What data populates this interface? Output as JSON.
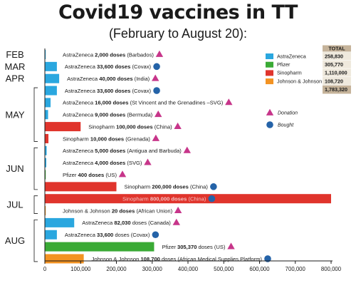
{
  "title": "Covid19 vaccines in TT",
  "subtitle": "(February to August 20):",
  "colors": {
    "AstraZeneca": "#2aa7df",
    "Pfizer": "#3aaa35",
    "Sinopharm": "#e0342c",
    "Johnson & Johnson": "#f39322",
    "donation": "#c7358a",
    "bought": "#2563a8"
  },
  "chart_data": {
    "type": "bar",
    "orientation": "horizontal",
    "title": "Covid19 vaccines in TT",
    "subtitle": "(February to August 20):",
    "xlim": [
      0,
      800000
    ],
    "xticks": [
      0,
      100000,
      200000,
      300000,
      400000,
      500000,
      600000,
      700000,
      800000
    ],
    "xtick_labels": [
      "0",
      "100,000",
      "200,000",
      "300,000",
      "400,000",
      "500,000",
      "600,000",
      "700,000",
      "800,000"
    ],
    "months": [
      {
        "label": "FEB",
        "rows": [
          0,
          0
        ]
      },
      {
        "label": "MAR",
        "rows": [
          1,
          1
        ]
      },
      {
        "label": "APR",
        "rows": [
          2,
          2
        ]
      },
      {
        "label": "MAY",
        "rows": [
          3,
          7
        ]
      },
      {
        "label": "JUN",
        "rows": [
          8,
          11
        ]
      },
      {
        "label": "JUL",
        "rows": [
          12,
          13
        ]
      },
      {
        "label": "AUG",
        "rows": [
          14,
          17
        ]
      }
    ],
    "bars": [
      {
        "vaccine": "AstraZeneca",
        "value": 2000,
        "doses_text": "2,000 doses",
        "source": "(Barbados)",
        "type": "donation"
      },
      {
        "vaccine": "AstraZeneca",
        "value": 33600,
        "doses_text": "33,600 doses",
        "source": "(Covax)",
        "type": "bought"
      },
      {
        "vaccine": "AstraZeneca",
        "value": 40000,
        "doses_text": "40,000 doses",
        "source": "(India)",
        "type": "donation"
      },
      {
        "vaccine": "AstraZeneca",
        "value": 33600,
        "doses_text": "33,600 doses",
        "source": "(Covax)",
        "type": "bought"
      },
      {
        "vaccine": "AstraZeneca",
        "value": 16000,
        "doses_text": "16,000 doses",
        "source": "(St Vincent and the Grenadines –SVG)",
        "type": "donation"
      },
      {
        "vaccine": "AstraZeneca",
        "value": 9000,
        "doses_text": "9,000 doses",
        "source": "(Bermuda)",
        "type": "donation"
      },
      {
        "vaccine": "Sinopharm",
        "value": 100000,
        "doses_text": "100,000 doses",
        "source": "(China)",
        "type": "donation"
      },
      {
        "vaccine": "Sinopharm",
        "value": 10000,
        "doses_text": "10,000 doses",
        "source": "(Grenada)",
        "type": "donation"
      },
      {
        "vaccine": "AstraZeneca",
        "value": 5000,
        "doses_text": "5,000 doses",
        "source": "(Antigua and Barbuda)",
        "type": "donation"
      },
      {
        "vaccine": "AstraZeneca",
        "value": 4000,
        "doses_text": "4,000 doses",
        "source": "(SVG)",
        "type": "donation"
      },
      {
        "vaccine": "Pfizer",
        "value": 400,
        "doses_text": "400 doses",
        "source": "(US)",
        "type": "donation"
      },
      {
        "vaccine": "Sinopharm",
        "value": 200000,
        "doses_text": "200,000 doses",
        "source": "(China)",
        "type": "bought"
      },
      {
        "vaccine": "Sinopharm",
        "value": 800000,
        "doses_text": "800,000 doses",
        "source": "(China)",
        "type": "bought"
      },
      {
        "vaccine": "Johnson & Johnson",
        "value": 20,
        "doses_text": "20 doses",
        "source": "(African Union)",
        "type": "donation"
      },
      {
        "vaccine": "AstraZeneca",
        "value": 82030,
        "doses_text": "82,030",
        "source": "doses (Canada)",
        "type": "donation"
      },
      {
        "vaccine": "AstraZeneca",
        "value": 33600,
        "doses_text": "33,600",
        "source": "doses (Covax)",
        "type": "bought"
      },
      {
        "vaccine": "Pfizer",
        "value": 305370,
        "doses_text": "305,370",
        "source": "doses (US)",
        "type": "donation"
      },
      {
        "vaccine": "Johnson & Johnson",
        "value": 108700,
        "doses_text": "108,700",
        "source": "doses  (African Medical Supplies Platform)",
        "type": "bought"
      }
    ],
    "legend": {
      "header": "TOTAL",
      "entries": [
        {
          "name": "AstraZeneca",
          "total": "258,830"
        },
        {
          "name": "Pfizer",
          "total": "305,770"
        },
        {
          "name": "Sinopharm",
          "total": "1,110,000"
        },
        {
          "name": "Johnson & Johnson",
          "total": "108,720"
        }
      ],
      "grand_total": "1,783,320",
      "markers": [
        {
          "name": "Donation",
          "shape": "triangle"
        },
        {
          "name": "Bought",
          "shape": "circle"
        }
      ]
    }
  }
}
